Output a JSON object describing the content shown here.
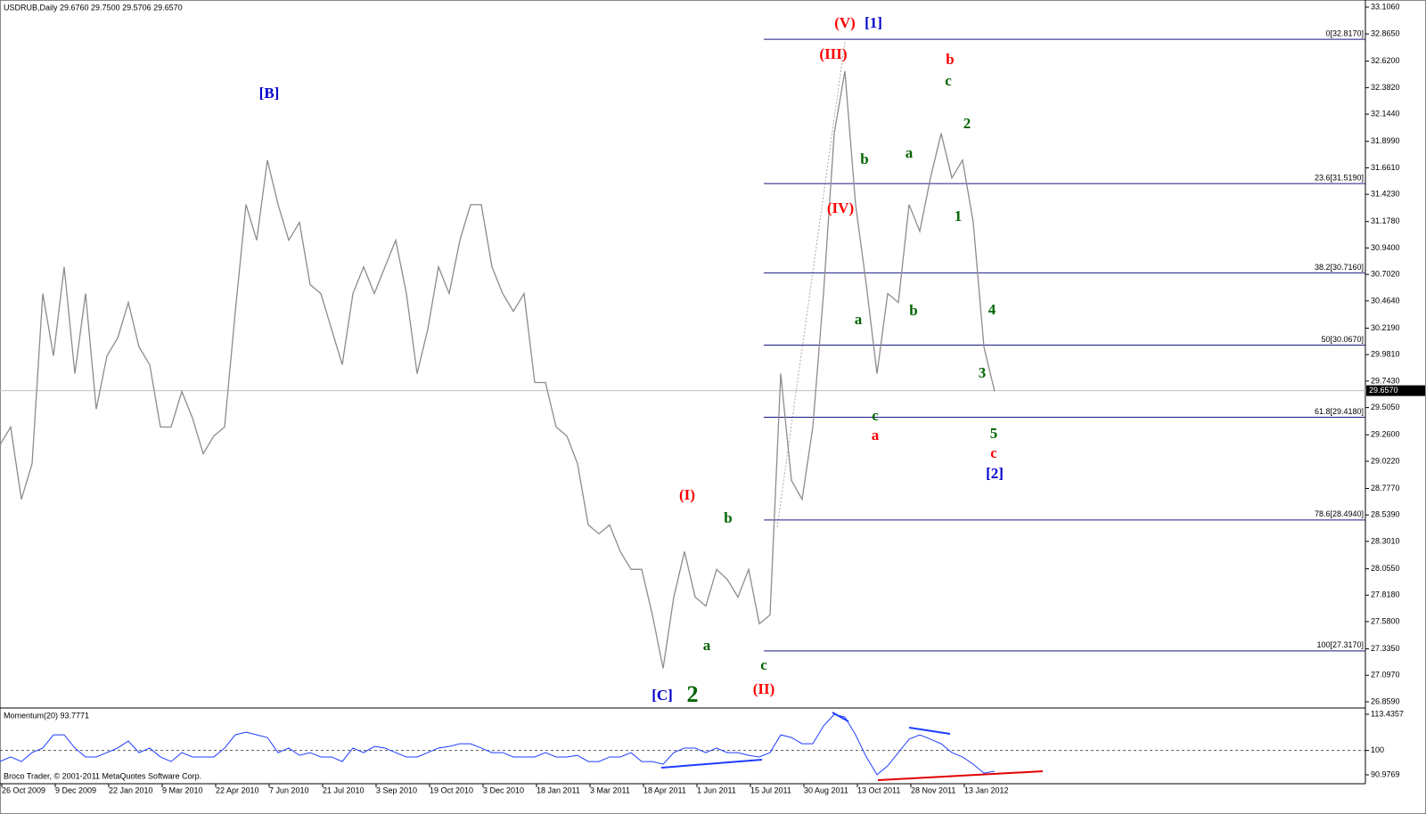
{
  "header": {
    "symbol_info": "USDRUB,Daily  29.6760 29.7500 29.5706 29.6570"
  },
  "footer": "Broco Trader, © 2001-2011 MetaQuotes Software Corp.",
  "chart_data": [
    {
      "type": "line",
      "title": "USDRUB,Daily  29.6760 29.7500 29.5706 29.6570",
      "color": "#8c8c8c",
      "x_labels": [
        "26 Oct 2009",
        "9 Dec 2009",
        "22 Jan 2010",
        "9 Mar 2010",
        "22 Apr 2010",
        "7 Jun 2010",
        "21 Jul 2010",
        "3 Sep 2010",
        "19 Oct 2010",
        "3 Dec 2010",
        "18 Jan 2011",
        "3 Mar 2011",
        "18 Apr 2011",
        "1 Jun 2011",
        "15 Jul 2011",
        "30 Aug 2011",
        "13 Oct 2011",
        "28 Nov 2011",
        "13 Jan 2012"
      ],
      "values": [
        29.17,
        29.33,
        28.68,
        29.0,
        30.53,
        29.97,
        30.77,
        29.81,
        30.53,
        29.49,
        29.97,
        30.13,
        30.45,
        30.05,
        29.89,
        29.33,
        29.33,
        29.65,
        29.41,
        29.09,
        29.25,
        29.33,
        30.37,
        31.33,
        31.01,
        31.73,
        31.33,
        31.01,
        31.17,
        30.61,
        30.53,
        30.21,
        29.89,
        30.53,
        30.77,
        30.53,
        30.77,
        31.01,
        30.53,
        29.81,
        30.21,
        30.77,
        30.53,
        31.01,
        31.33,
        31.33,
        30.77,
        30.53,
        30.37,
        30.53,
        29.73,
        29.73,
        29.33,
        29.25,
        29.0,
        28.45,
        28.37,
        28.45,
        28.21,
        28.05,
        28.05,
        27.64,
        27.16,
        27.8,
        28.21,
        27.8,
        27.72,
        28.05,
        27.96,
        27.8,
        28.05,
        27.56,
        27.64,
        29.81,
        28.85,
        28.68,
        29.33,
        30.53,
        31.97,
        32.53,
        31.33,
        30.61,
        29.81,
        30.53,
        30.45,
        31.33,
        31.09,
        31.57,
        31.97,
        31.57,
        31.73,
        31.17,
        30.05,
        29.65
      ],
      "ylim": [
        26.819,
        33.154
      ],
      "yticks": [
        {
          "value": 33.106,
          "label": "33.1060"
        },
        {
          "value": 32.865,
          "label": "32.8650"
        },
        {
          "value": 32.62,
          "label": "32.6200"
        },
        {
          "value": 32.382,
          "label": "32.3820"
        },
        {
          "value": 32.144,
          "label": "32.1440"
        },
        {
          "value": 31.899,
          "label": "31.8990"
        },
        {
          "value": 31.661,
          "label": "31.6610"
        },
        {
          "value": 31.423,
          "label": "31.4230"
        },
        {
          "value": 31.178,
          "label": "31.1780"
        },
        {
          "value": 30.94,
          "label": "30.9400"
        },
        {
          "value": 30.702,
          "label": "30.7020"
        },
        {
          "value": 30.464,
          "label": "30.4640"
        },
        {
          "value": 30.219,
          "label": "30.2190"
        },
        {
          "value": 29.981,
          "label": "29.9810"
        },
        {
          "value": 29.743,
          "label": "29.7430"
        },
        {
          "value": 29.505,
          "label": "29.5050"
        },
        {
          "value": 29.26,
          "label": "29.2600"
        },
        {
          "value": 29.022,
          "label": "29.0220"
        },
        {
          "value": 28.777,
          "label": "28.7770"
        },
        {
          "value": 28.539,
          "label": "28.5390"
        },
        {
          "value": 28.301,
          "label": "28.3010"
        },
        {
          "value": 28.055,
          "label": "28.0550"
        },
        {
          "value": 27.818,
          "label": "27.8180"
        },
        {
          "value": 27.58,
          "label": "27.5800"
        },
        {
          "value": 27.335,
          "label": "27.3350"
        },
        {
          "value": 27.097,
          "label": "27.0970"
        },
        {
          "value": 26.859,
          "label": "26.8590"
        }
      ],
      "current_price": {
        "value": 29.657,
        "label": "29.6570"
      },
      "fib_levels": [
        {
          "value": 32.817,
          "label": "0[32.8170]"
        },
        {
          "value": 31.519,
          "label": "23.6[31.5190]"
        },
        {
          "value": 30.716,
          "label": "38.2[30.7160]"
        },
        {
          "value": 30.067,
          "label": "50[30.0670]"
        },
        {
          "value": 29.418,
          "label": "61.8[29.4180]"
        },
        {
          "value": 28.494,
          "label": "78.6[28.4940]"
        },
        {
          "value": 27.317,
          "label": "100[27.3170]"
        }
      ],
      "fib_color": "#1a1a80",
      "annotations": [
        {
          "text": "(V)",
          "color": "#ff0000"
        },
        {
          "text": "[1]",
          "color": "#0000cc"
        },
        {
          "text": "(III)",
          "color": "#ff0000"
        },
        {
          "text": "b",
          "color": "#ff0000"
        },
        {
          "text": "c",
          "color": "#006400"
        },
        {
          "text": "[B]",
          "color": "#0000cc"
        },
        {
          "text": "2",
          "color": "#006400"
        },
        {
          "text": "b",
          "color": "#006400"
        },
        {
          "text": "a",
          "color": "#006400"
        },
        {
          "text": "(IV)",
          "color": "#ff0000"
        },
        {
          "text": "1",
          "color": "#006400"
        },
        {
          "text": "a",
          "color": "#006400"
        },
        {
          "text": "b",
          "color": "#006400"
        },
        {
          "text": "4",
          "color": "#006400"
        },
        {
          "text": "3",
          "color": "#006400"
        },
        {
          "text": "c",
          "color": "#006400"
        },
        {
          "text": "a",
          "color": "#ff0000"
        },
        {
          "text": "5",
          "color": "#006400"
        },
        {
          "text": "c",
          "color": "#ff0000"
        },
        {
          "text": "[2]",
          "color": "#0000cc"
        },
        {
          "text": "(I)",
          "color": "#ff0000"
        },
        {
          "text": "b",
          "color": "#006400"
        },
        {
          "text": "a",
          "color": "#006400"
        },
        {
          "text": "c",
          "color": "#006400"
        },
        {
          "text": "[C]",
          "color": "#0000cc"
        },
        {
          "text": "2",
          "color": "#006400"
        },
        {
          "text": "(II)",
          "color": "#ff0000"
        }
      ]
    },
    {
      "type": "line",
      "title": "Momentum(20) 93.7771",
      "color": "#1e3cff",
      "values": [
        95.9,
        97.6,
        95.9,
        99.2,
        100.9,
        105.8,
        105.8,
        100.9,
        97.6,
        97.6,
        99.2,
        100.9,
        103.5,
        99.2,
        100.9,
        97.6,
        95.9,
        99.2,
        97.6,
        97.6,
        97.6,
        100.9,
        105.8,
        106.8,
        105.8,
        104.8,
        99.2,
        100.9,
        98.2,
        99.2,
        97.6,
        97.6,
        95.9,
        100.9,
        99.2,
        101.5,
        100.9,
        99.2,
        97.6,
        97.6,
        99.2,
        100.9,
        101.5,
        102.5,
        102.5,
        100.9,
        99.2,
        99.2,
        97.6,
        97.6,
        97.6,
        99.2,
        97.6,
        97.6,
        98.2,
        95.9,
        95.9,
        97.6,
        97.6,
        99.2,
        95.9,
        95.9,
        94.9,
        99.2,
        100.9,
        100.9,
        99.2,
        100.9,
        99.2,
        99.2,
        98.2,
        97.6,
        99.2,
        105.8,
        104.8,
        102.5,
        102.5,
        109.1,
        113.4,
        112.4,
        105.8,
        97.6,
        91.0,
        94.3,
        99.2,
        104.2,
        105.8,
        104.2,
        102.5,
        99.2,
        97.6,
        94.9,
        91.6,
        92.3
      ],
      "ylim": [
        88.33,
        115.09
      ],
      "yticks": [
        113.4357,
        100,
        90.9769
      ],
      "level": 100
    }
  ]
}
